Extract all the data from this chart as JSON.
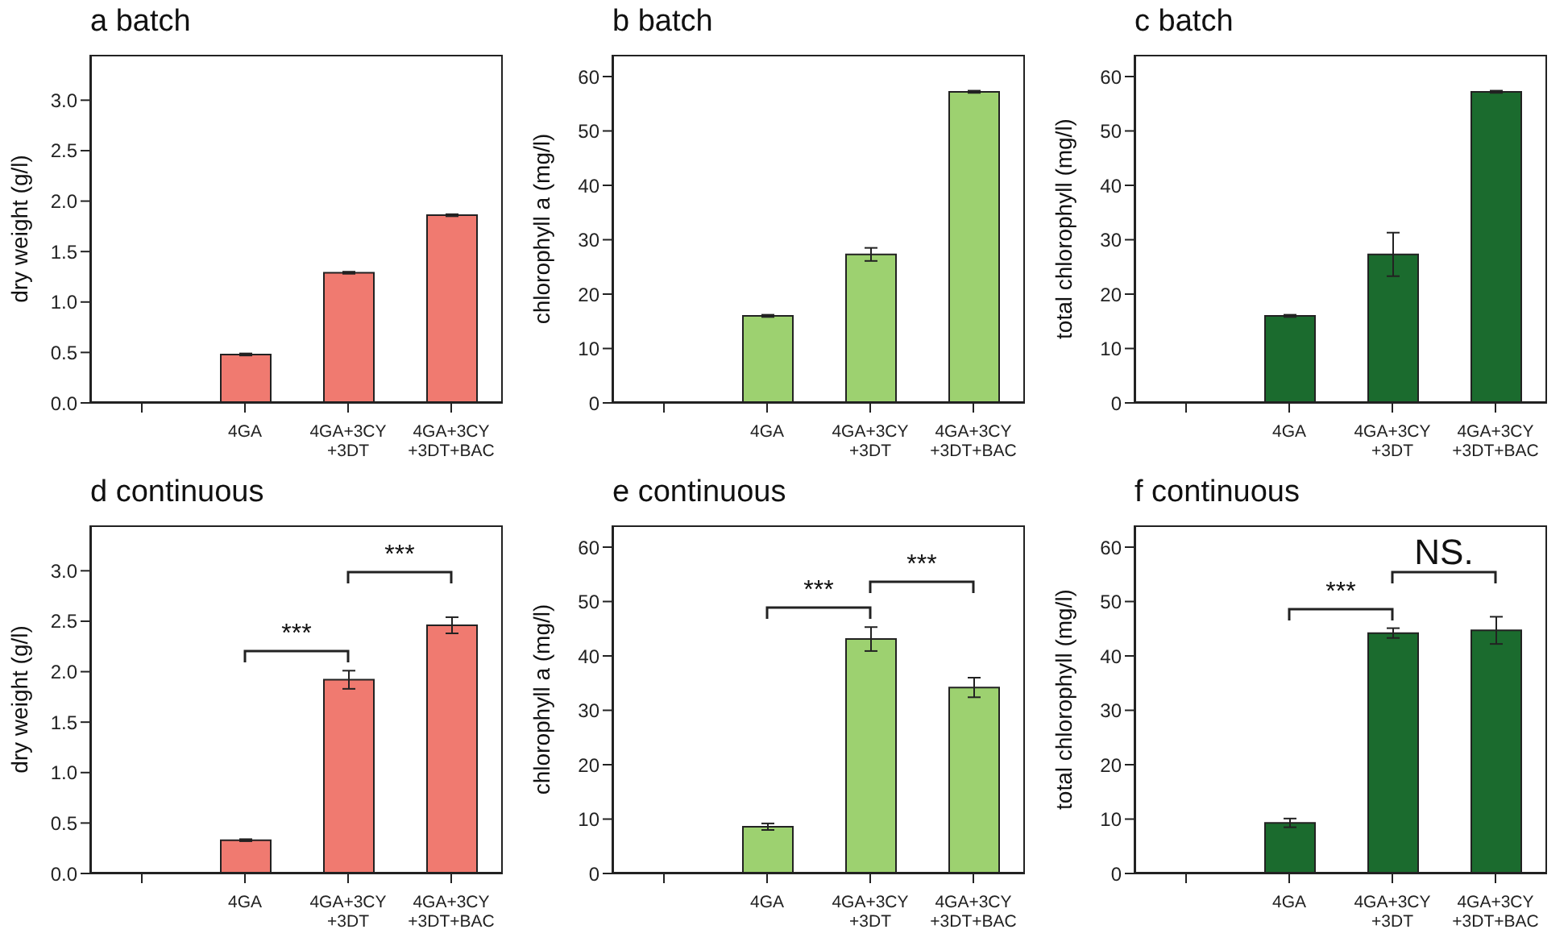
{
  "chart_data": [
    {
      "type": "bar",
      "title": "a batch",
      "ylabel": "dry weight (g/l)",
      "categories": [
        null,
        "4GA",
        "4GA+3CY +3DT",
        "4GA+3CY +3DT+BAC"
      ],
      "values": [
        null,
        0.48,
        1.29,
        1.86
      ],
      "errors": [
        null,
        0.01,
        0.01,
        0.01
      ],
      "color": "#f07a70",
      "ylim": [
        0,
        3.45
      ],
      "yticks": [
        {
          "value": 0,
          "label": "0.0"
        },
        0.5,
        {
          "value": 1,
          "label": "1.0"
        },
        1.5,
        {
          "value": 2,
          "label": "2.0"
        },
        2.5,
        {
          "value": 3,
          "label": "3.0"
        }
      ],
      "grid": false
    },
    {
      "type": "bar",
      "title": "b batch",
      "ylabel": "chlorophyll a (mg/l)",
      "categories": [
        null,
        "4GA",
        "4GA+3CY +3DT",
        "4GA+3CY +3DT+BAC"
      ],
      "values": [
        null,
        16,
        27.3,
        57.2
      ],
      "errors": [
        null,
        0.2,
        1.2,
        0.2
      ],
      "color": "#9dd170",
      "ylim": [
        0,
        64
      ],
      "yticks": [
        0,
        10,
        20,
        30,
        40,
        50,
        60
      ],
      "grid": false
    },
    {
      "type": "bar",
      "title": "c batch",
      "ylabel": "total chlorophyll (mg/l)",
      "categories": [
        null,
        "4GA",
        "4GA+3CY +3DT",
        "4GA+3CY +3DT+BAC"
      ],
      "values": [
        null,
        16,
        27.3,
        57.2
      ],
      "errors": [
        null,
        0.2,
        4,
        0.2
      ],
      "color": "#1b6b2e",
      "ylim": [
        0,
        64
      ],
      "yticks": [
        0,
        10,
        20,
        30,
        40,
        50,
        60
      ],
      "grid": false
    },
    {
      "type": "bar",
      "title": "d continuous",
      "ylabel": "dry weight (g/l)",
      "categories": [
        null,
        "4GA",
        "4GA+3CY +3DT",
        "4GA+3CY +3DT+BAC"
      ],
      "values": [
        null,
        0.33,
        1.92,
        2.46
      ],
      "errors": [
        null,
        0.01,
        0.09,
        0.08
      ],
      "color": "#f07a70",
      "ylim": [
        0,
        3.45
      ],
      "yticks": [
        {
          "value": 0,
          "label": "0.0"
        },
        0.5,
        {
          "value": 1,
          "label": "1.0"
        },
        1.5,
        {
          "value": 2,
          "label": "2.0"
        },
        2.5,
        {
          "value": 3,
          "label": "3.0"
        }
      ],
      "grid": false,
      "annotations": [
        "***",
        "***"
      ]
    },
    {
      "type": "bar",
      "title": "e continuous",
      "ylabel": "chlorophyll a (mg/l)",
      "categories": [
        null,
        "4GA",
        "4GA+3CY +3DT",
        "4GA+3CY +3DT+BAC"
      ],
      "values": [
        null,
        8.6,
        43.1,
        34.2
      ],
      "errors": [
        null,
        0.6,
        2.2,
        1.8
      ],
      "color": "#9dd170",
      "ylim": [
        0,
        64
      ],
      "yticks": [
        0,
        10,
        20,
        30,
        40,
        50,
        60
      ],
      "grid": false,
      "annotations": [
        "***",
        "***"
      ]
    },
    {
      "type": "bar",
      "title": "f continuous",
      "ylabel": "total chlorophyll (mg/l)",
      "categories": [
        null,
        "4GA",
        "4GA+3CY +3DT",
        "4GA+3CY +3DT+BAC"
      ],
      "values": [
        null,
        9.3,
        44.2,
        44.7
      ],
      "errors": [
        null,
        0.8,
        0.9,
        2.5
      ],
      "color": "#1b6b2e",
      "ylim": [
        0,
        64
      ],
      "yticks": [
        0,
        10,
        20,
        30,
        40,
        50,
        60
      ],
      "grid": false,
      "annotations": [
        "***",
        "NS."
      ]
    }
  ]
}
